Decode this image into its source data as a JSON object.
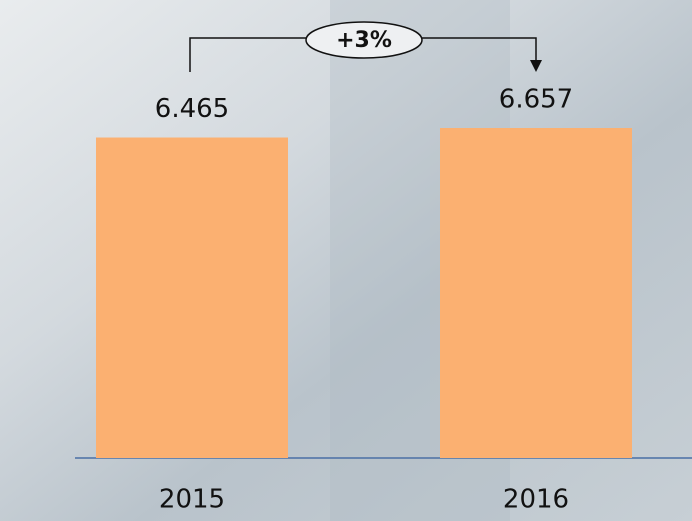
{
  "chart_data": {
    "type": "bar",
    "categories": [
      "2015",
      "2016"
    ],
    "values": [
      6.465,
      6.657
    ],
    "color": "#fbb071",
    "annotation": "+3%"
  }
}
